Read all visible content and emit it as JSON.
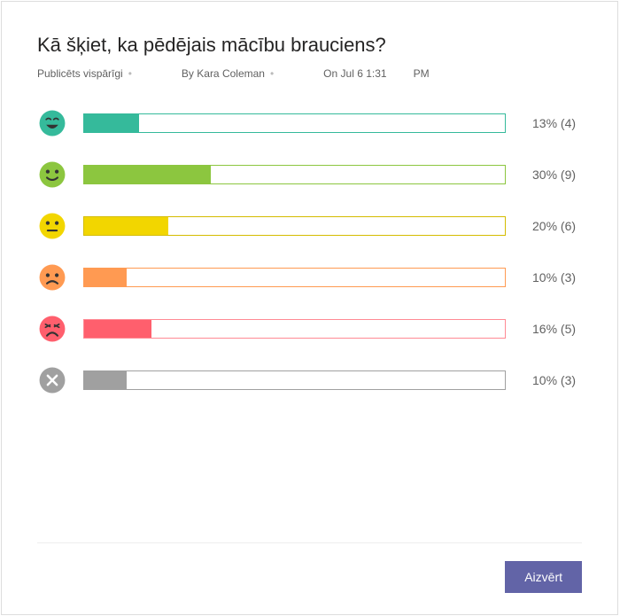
{
  "title": "Kā šķiet, ka pēdējais mācību brauciens?",
  "meta": {
    "published": "Publicēts vispārīgi",
    "author": "By Kara Coleman",
    "date": "On Jul 6 1:31",
    "ampm": "PM"
  },
  "rows": [
    {
      "face": "laugh",
      "color": "#35ba9b",
      "border": "#35ba9b",
      "percent": 13,
      "count": 4,
      "label": "13% (4)"
    },
    {
      "face": "smile",
      "color": "#8cc63f",
      "border": "#8cc63f",
      "percent": 30,
      "count": 9,
      "label": "30% (9)"
    },
    {
      "face": "neutral",
      "color": "#f2d600",
      "border": "#d4bc00",
      "percent": 20,
      "count": 6,
      "label": "20% (6)"
    },
    {
      "face": "sad",
      "color": "#ff9a52",
      "border": "#ff9a52",
      "percent": 10,
      "count": 3,
      "label": "10% (3)"
    },
    {
      "face": "upset",
      "color": "#ff5f6d",
      "border": "#ff8a94",
      "percent": 16,
      "count": 5,
      "label": "16% (5)"
    },
    {
      "face": "skip",
      "color": "#a0a0a0",
      "border": "#a0a0a0",
      "percent": 10,
      "count": 3,
      "label": "10% (3)"
    }
  ],
  "close_label": "Aizvērt",
  "button_color": "#6264a7"
}
